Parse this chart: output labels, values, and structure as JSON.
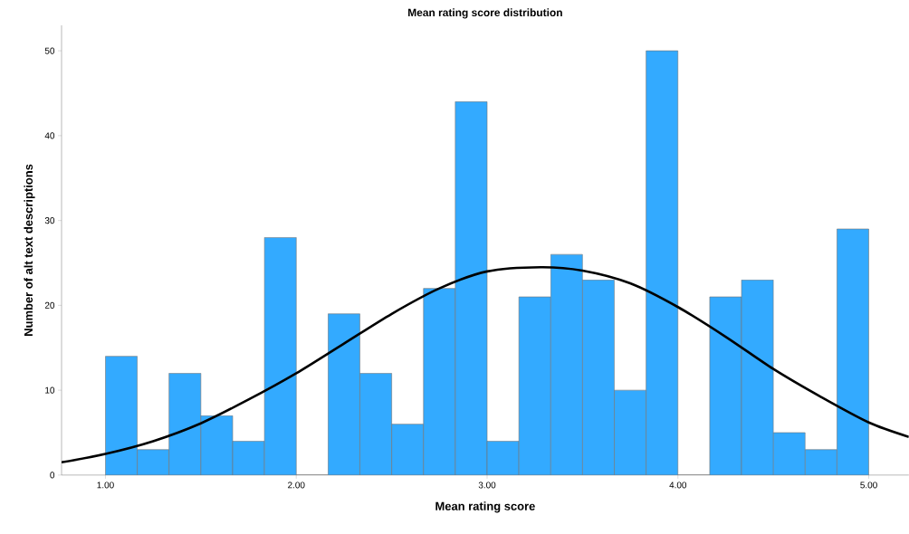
{
  "chart_data": {
    "type": "histogram",
    "title": "Mean rating score distribution",
    "xlabel": "Mean rating score",
    "ylabel": "Number of alt text descriptions",
    "bins": [
      1,
      1.1667,
      1.3333,
      1.5,
      1.6667,
      1.8333,
      2,
      2.1667,
      2.3333,
      2.5,
      2.6667,
      2.8333,
      3,
      3.1667,
      3.3333,
      3.5,
      3.6667,
      3.8333,
      4,
      4.1667,
      4.3333,
      4.5,
      4.6667,
      4.8333,
      5
    ],
    "series": [
      {
        "color": "#33aaff",
        "values": [
          14,
          3,
          12,
          7,
          4,
          28,
          0,
          19,
          12,
          6,
          22,
          44,
          4,
          21,
          26,
          23,
          10,
          50,
          0,
          21,
          23,
          5,
          3,
          29
        ]
      },
      {
        "type": "line",
        "color": "#000000",
        "x": [
          0.77,
          1.0,
          1.25,
          1.5,
          1.75,
          2.0,
          2.25,
          2.5,
          2.75,
          3.0,
          3.28,
          3.5,
          3.75,
          4.0,
          4.25,
          4.5,
          4.75,
          5.0,
          5.21
        ],
        "values": [
          1.5,
          2.5,
          4,
          6.1,
          8.9,
          12,
          15.5,
          19,
          22,
          24,
          24.5,
          24.1,
          22.6,
          19.8,
          16.3,
          12.5,
          9.2,
          6.2,
          4.5
        ]
      }
    ],
    "xlim": [
      0.77,
      5.21
    ],
    "ylim": [
      0,
      53
    ],
    "xticks": [
      {
        "value": 1,
        "label": "1.00"
      },
      {
        "value": 2,
        "label": "2.00"
      },
      {
        "value": 3,
        "label": "3.00"
      },
      {
        "value": 4,
        "label": "4.00"
      },
      {
        "value": 5,
        "label": "5.00"
      }
    ],
    "yticks": [
      0,
      10,
      20,
      30,
      40,
      50
    ],
    "grid": false,
    "marker": "none",
    "line_style": "solid"
  }
}
